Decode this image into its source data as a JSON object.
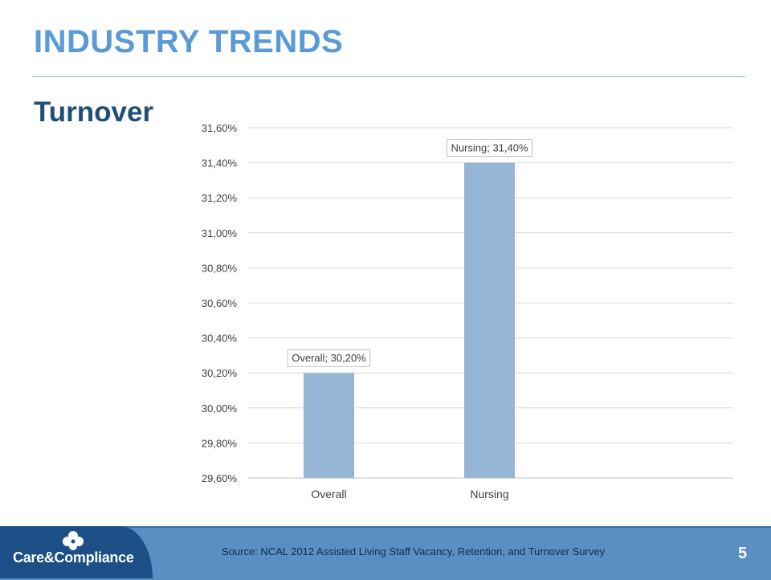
{
  "slide": {
    "title": "INDUSTRY TRENDS",
    "subtitle": "Turnover",
    "source": "Source: NCAL 2012 Assisted Living Staff Vacancy, Retention, and Turnover Survey",
    "page_number": "5"
  },
  "brand": {
    "logo_text": "Care&Compliance",
    "colors": {
      "title": "#5b9bd5",
      "subtitle": "#1f4e79",
      "bar": "#94b5d4",
      "footer": "#5a8fc4",
      "logo_bg": "#1b4f86"
    },
    "logo_icon": "clover-flower-icon"
  },
  "chart_data": {
    "type": "bar",
    "categories": [
      "Overall",
      "Nursing"
    ],
    "values": [
      30.2,
      31.4
    ],
    "data_labels": [
      "Overall; 30,20%",
      "Nursing; 31,40%"
    ],
    "ylim": [
      29.6,
      31.6
    ],
    "y_ticks": [
      29.6,
      29.8,
      30.0,
      30.2,
      30.4,
      30.6,
      30.8,
      31.0,
      31.2,
      31.4,
      31.6
    ],
    "y_tick_labels": [
      "29,60%",
      "29,80%",
      "30,00%",
      "30,20%",
      "30,40%",
      "30,60%",
      "30,80%",
      "31,00%",
      "31,20%",
      "31,40%",
      "31,60%"
    ],
    "grid": true,
    "legend": "none",
    "xlabel": "",
    "ylabel": ""
  }
}
